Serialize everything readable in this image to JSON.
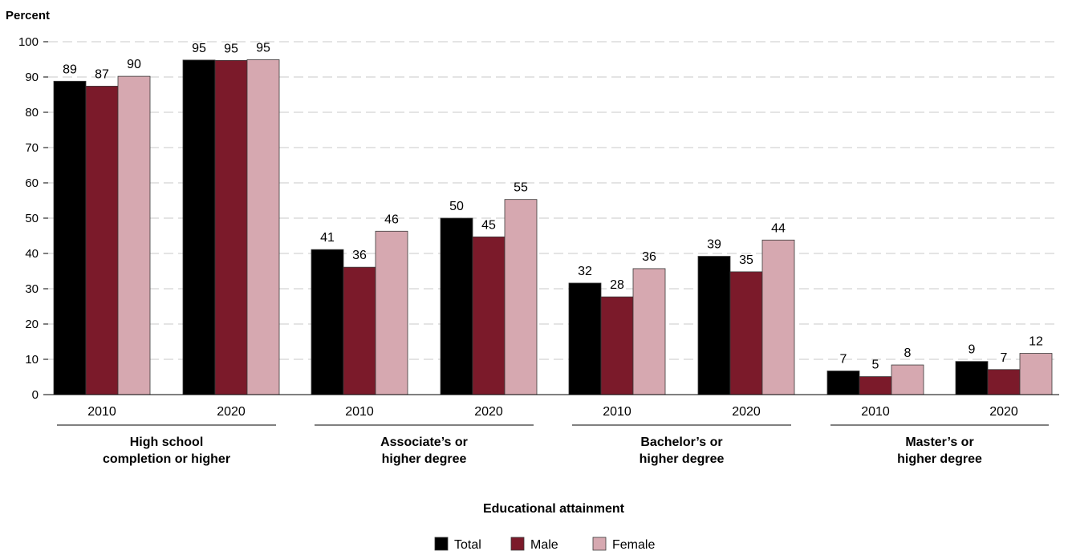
{
  "chart_data": {
    "type": "bar",
    "title": "",
    "ylabel": "Percent",
    "xlabel": "Educational attainment",
    "ylim": [
      0,
      100
    ],
    "yticks": [
      0,
      10,
      20,
      30,
      40,
      50,
      60,
      70,
      80,
      90,
      100
    ],
    "grid": true,
    "legend_position": "bottom",
    "groups": [
      {
        "label_lines": [
          "High school",
          "completion or higher"
        ],
        "years": [
          "2010",
          "2020"
        ]
      },
      {
        "label_lines": [
          "Associate’s or",
          "higher degree"
        ],
        "years": [
          "2010",
          "2020"
        ]
      },
      {
        "label_lines": [
          "Bachelor’s or",
          "higher degree"
        ],
        "years": [
          "2010",
          "2020"
        ]
      },
      {
        "label_lines": [
          "Master’s or",
          "higher degree"
        ],
        "years": [
          "2010",
          "2020"
        ]
      }
    ],
    "categories": [
      "High school completion or higher 2010",
      "High school completion or higher 2020",
      "Associate’s or higher degree 2010",
      "Associate’s or higher degree 2020",
      "Bachelor’s or higher degree 2010",
      "Bachelor’s or higher degree 2020",
      "Master’s or higher degree 2010",
      "Master’s or higher degree 2020"
    ],
    "series": [
      {
        "name": "Total",
        "color": "#000000",
        "values": [
          88.8,
          94.8,
          41.1,
          50.0,
          31.6,
          39.2,
          6.7,
          9.4
        ],
        "labels": [
          "89",
          "95",
          "41",
          "50",
          "32",
          "39",
          "7",
          "9"
        ]
      },
      {
        "name": "Male",
        "color": "#7B1A2A",
        "values": [
          87.4,
          94.7,
          36.1,
          44.7,
          27.7,
          34.8,
          5.1,
          7.1
        ],
        "labels": [
          "87",
          "95",
          "36",
          "45",
          "28",
          "35",
          "5",
          "7"
        ]
      },
      {
        "name": "Female",
        "color": "#D6A8B0",
        "values": [
          90.2,
          94.9,
          46.3,
          55.3,
          35.7,
          43.8,
          8.4,
          11.7
        ],
        "labels": [
          "90",
          "95",
          "46",
          "55",
          "36",
          "44",
          "8",
          "12"
        ]
      }
    ]
  }
}
